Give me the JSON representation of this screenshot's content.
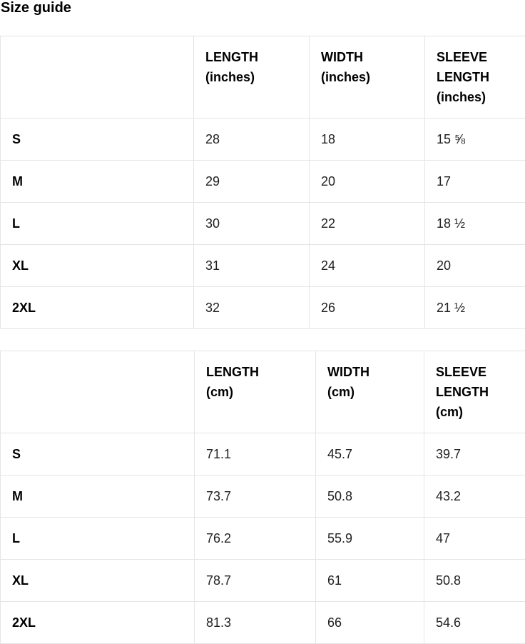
{
  "page": {
    "title": "Size guide"
  },
  "colors": {
    "background": "#ffffff",
    "heading_text": "#000000",
    "body_text": "#212121",
    "table_border": "#e5e5e5"
  },
  "tables": [
    {
      "unit": "inches",
      "headers": [
        {
          "lines": [
            "LENGTH",
            "(inches)"
          ]
        },
        {
          "lines": [
            "WIDTH",
            "(inches)"
          ]
        },
        {
          "lines": [
            "SLEEVE",
            "LENGTH",
            "(inches)"
          ]
        }
      ],
      "rows": [
        {
          "label": "S",
          "values": [
            "28",
            "18",
            "15 ⅝"
          ]
        },
        {
          "label": "M",
          "values": [
            "29",
            "20",
            "17"
          ]
        },
        {
          "label": "L",
          "values": [
            "30",
            "22",
            "18 ½"
          ]
        },
        {
          "label": "XL",
          "values": [
            "31",
            "24",
            "20"
          ]
        },
        {
          "label": "2XL",
          "values": [
            "32",
            "26",
            "21 ½"
          ]
        }
      ]
    },
    {
      "unit": "cm",
      "headers": [
        {
          "lines": [
            "LENGTH",
            "(cm)"
          ]
        },
        {
          "lines": [
            "WIDTH",
            "(cm)"
          ]
        },
        {
          "lines": [
            "SLEEVE",
            "LENGTH",
            "(cm)"
          ]
        }
      ],
      "rows": [
        {
          "label": "S",
          "values": [
            "71.1",
            "45.7",
            "39.7"
          ]
        },
        {
          "label": "M",
          "values": [
            "73.7",
            "50.8",
            "43.2"
          ]
        },
        {
          "label": "L",
          "values": [
            "76.2",
            "55.9",
            "47"
          ]
        },
        {
          "label": "XL",
          "values": [
            "78.7",
            "61",
            "50.8"
          ]
        },
        {
          "label": "2XL",
          "values": [
            "81.3",
            "66",
            "54.6"
          ]
        }
      ]
    }
  ]
}
